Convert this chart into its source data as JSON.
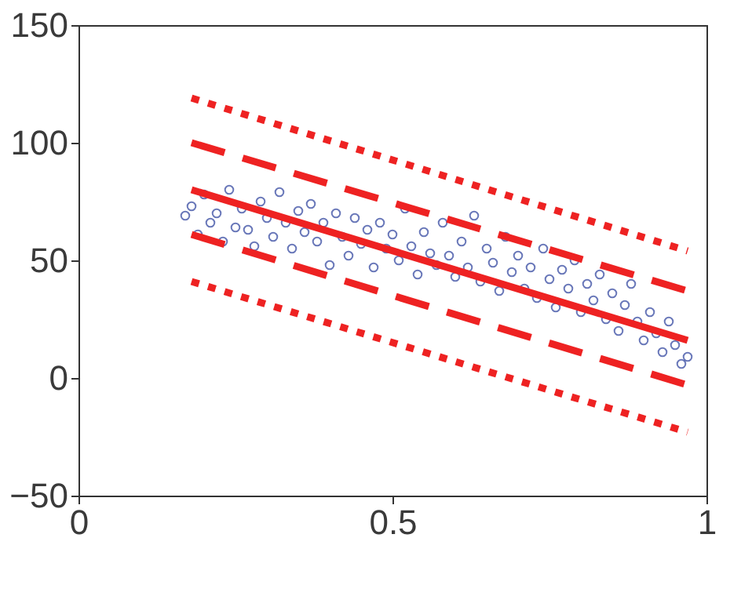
{
  "chart_data": {
    "type": "scatter",
    "xlim": [
      0,
      1
    ],
    "ylim": [
      -50,
      150
    ],
    "xticks": [
      0,
      0.5,
      1
    ],
    "yticks": [
      -50,
      0,
      50,
      100,
      150
    ],
    "grid": false,
    "series": [
      {
        "marker": "circle",
        "color": "#2b3f9c",
        "x": [
          0.17,
          0.18,
          0.19,
          0.2,
          0.21,
          0.22,
          0.23,
          0.24,
          0.25,
          0.26,
          0.27,
          0.28,
          0.29,
          0.3,
          0.31,
          0.32,
          0.33,
          0.34,
          0.35,
          0.36,
          0.37,
          0.38,
          0.39,
          0.4,
          0.41,
          0.42,
          0.43,
          0.44,
          0.45,
          0.46,
          0.47,
          0.48,
          0.49,
          0.5,
          0.51,
          0.52,
          0.53,
          0.54,
          0.55,
          0.56,
          0.57,
          0.58,
          0.59,
          0.6,
          0.61,
          0.62,
          0.63,
          0.64,
          0.65,
          0.66,
          0.67,
          0.68,
          0.69,
          0.7,
          0.71,
          0.72,
          0.73,
          0.74,
          0.75,
          0.76,
          0.77,
          0.78,
          0.79,
          0.8,
          0.81,
          0.82,
          0.83,
          0.84,
          0.85,
          0.86,
          0.87,
          0.88,
          0.89,
          0.9,
          0.91,
          0.92,
          0.93,
          0.94,
          0.95,
          0.96,
          0.97
        ],
        "values": [
          69,
          73,
          61,
          78,
          66,
          70,
          58,
          80,
          64,
          72,
          63,
          56,
          75,
          68,
          60,
          79,
          66,
          55,
          71,
          62,
          74,
          58,
          66,
          48,
          70,
          60,
          52,
          68,
          57,
          63,
          47,
          66,
          55,
          61,
          50,
          72,
          56,
          44,
          62,
          53,
          48,
          66,
          52,
          43,
          58,
          47,
          69,
          41,
          55,
          49,
          37,
          60,
          45,
          52,
          38,
          47,
          34,
          55,
          42,
          30,
          46,
          38,
          50,
          28,
          40,
          33,
          44,
          25,
          36,
          20,
          31,
          40,
          24,
          16,
          28,
          19,
          11,
          24,
          14,
          6,
          9
        ]
      },
      {
        "type": "line",
        "line_style": "dotted",
        "color": "#ee2222",
        "x": [
          0.18,
          0.97
        ],
        "values": [
          119,
          54
        ]
      },
      {
        "type": "line",
        "line_style": "dashed",
        "color": "#ee2222",
        "x": [
          0.18,
          0.97
        ],
        "values": [
          100,
          37
        ]
      },
      {
        "type": "line",
        "line_style": "solid",
        "color": "#ee2222",
        "x": [
          0.18,
          0.97
        ],
        "values": [
          80,
          16
        ]
      },
      {
        "type": "line",
        "line_style": "dashed",
        "color": "#ee2222",
        "x": [
          0.18,
          0.97
        ],
        "values": [
          61,
          -3
        ]
      },
      {
        "type": "line",
        "line_style": "dotted",
        "color": "#ee2222",
        "x": [
          0.18,
          0.97
        ],
        "values": [
          41,
          -23
        ]
      }
    ]
  }
}
